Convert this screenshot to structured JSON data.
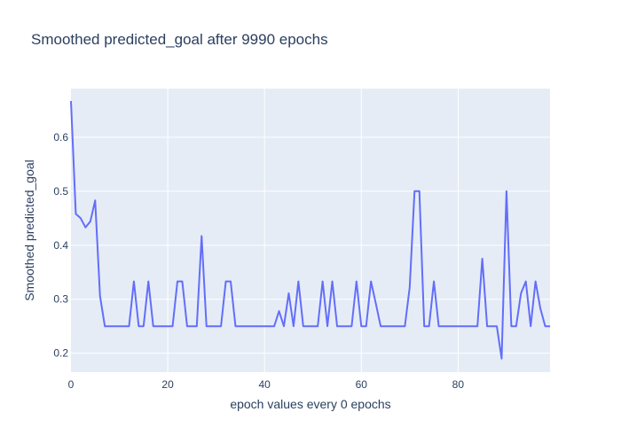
{
  "chart_data": {
    "type": "line",
    "title": "Smoothed predicted_goal after 9990 epochs",
    "xlabel": "epoch values every 0 epochs",
    "ylabel": "Smoothed predicted_goal",
    "xlim": [
      0,
      99
    ],
    "ylim": [
      0.165,
      0.69
    ],
    "x_ticks": [
      0,
      20,
      40,
      60,
      80
    ],
    "y_ticks": [
      0.2,
      0.3,
      0.4,
      0.5,
      0.6
    ],
    "grid": true,
    "plot_background": "#e5ecf6",
    "series": [
      {
        "color": "#636efa",
        "x": [
          0,
          1,
          2,
          3,
          4,
          5,
          6,
          7,
          8,
          9,
          10,
          11,
          12,
          13,
          14,
          15,
          16,
          17,
          18,
          19,
          20,
          21,
          22,
          23,
          24,
          25,
          26,
          27,
          28,
          29,
          30,
          31,
          32,
          33,
          34,
          35,
          36,
          37,
          38,
          39,
          40,
          41,
          42,
          43,
          44,
          45,
          46,
          47,
          48,
          49,
          50,
          51,
          52,
          53,
          54,
          55,
          56,
          57,
          58,
          59,
          60,
          61,
          62,
          63,
          64,
          65,
          66,
          67,
          68,
          69,
          70,
          71,
          72,
          73,
          74,
          75,
          76,
          77,
          78,
          79,
          80,
          81,
          82,
          83,
          84,
          85,
          86,
          87,
          88,
          89,
          90,
          91,
          92,
          93,
          94,
          95,
          96,
          97,
          98,
          99
        ],
        "values": [
          0.667,
          0.458,
          0.45,
          0.433,
          0.444,
          0.483,
          0.306,
          0.25,
          0.25,
          0.25,
          0.25,
          0.25,
          0.25,
          0.333,
          0.25,
          0.25,
          0.333,
          0.25,
          0.25,
          0.25,
          0.25,
          0.25,
          0.333,
          0.333,
          0.25,
          0.25,
          0.25,
          0.417,
          0.25,
          0.25,
          0.25,
          0.25,
          0.333,
          0.333,
          0.25,
          0.25,
          0.25,
          0.25,
          0.25,
          0.25,
          0.25,
          0.25,
          0.25,
          0.278,
          0.25,
          0.311,
          0.25,
          0.333,
          0.25,
          0.25,
          0.25,
          0.25,
          0.333,
          0.25,
          0.333,
          0.25,
          0.25,
          0.25,
          0.25,
          0.333,
          0.25,
          0.25,
          0.333,
          0.292,
          0.25,
          0.25,
          0.25,
          0.25,
          0.25,
          0.25,
          0.322,
          0.5,
          0.5,
          0.25,
          0.25,
          0.333,
          0.25,
          0.25,
          0.25,
          0.25,
          0.25,
          0.25,
          0.25,
          0.25,
          0.25,
          0.375,
          0.25,
          0.25,
          0.25,
          0.19,
          0.5,
          0.25,
          0.25,
          0.311,
          0.333,
          0.25,
          0.333,
          0.283,
          0.25,
          0.25
        ]
      }
    ]
  }
}
